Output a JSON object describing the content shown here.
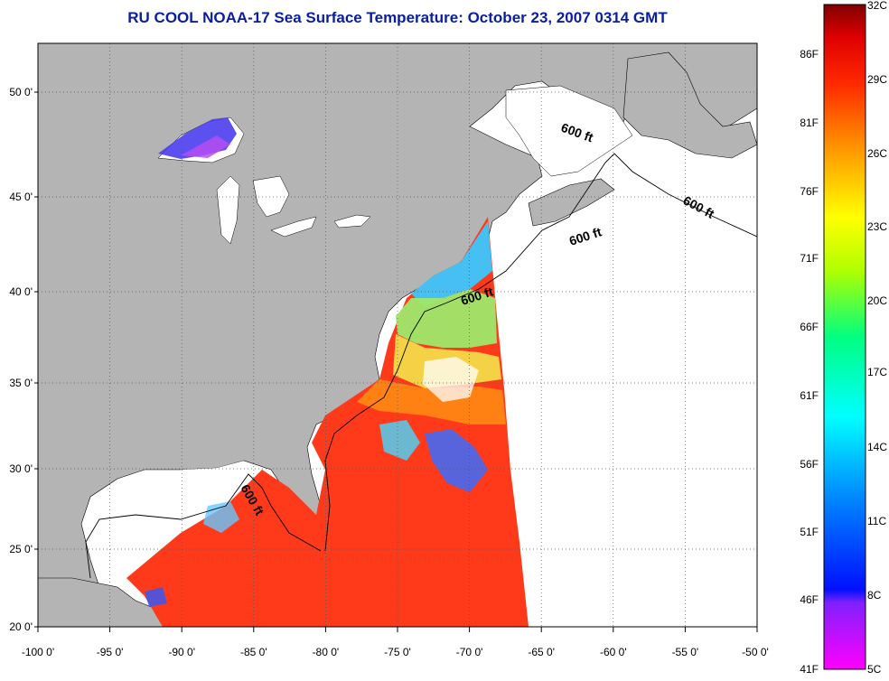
{
  "title": "RU COOL  NOAA-17  Sea Surface Temperature:  October 23, 2007 0314 GMT",
  "map": {
    "lon_labels": [
      "-100 0'",
      "-95 0'",
      "-90 0'",
      "-85 0'",
      "-80 0'",
      "-75 0'",
      "-70 0'",
      "-65 0'",
      "-60 0'",
      "-55 0'",
      "-50 0'"
    ],
    "lat_labels": [
      "50 0'",
      "45 0'",
      "40 0'",
      "35 0'",
      "30 0'",
      "25 0'",
      "20 0'"
    ],
    "lon_range": [
      -100,
      -50
    ],
    "lat_range": [
      20,
      52.5
    ],
    "grid": "dotted",
    "land_color": "#b4b4b4",
    "nodata_color": "#ffffff",
    "contour_labels": [
      "600 ft",
      "600 ft",
      "600 ft",
      "600 ft"
    ]
  },
  "colorbar": {
    "celsius_labels": [
      "32C",
      "29C",
      "26C",
      "23C",
      "20C",
      "17C",
      "14C",
      "11C",
      "8C",
      "5C"
    ],
    "fahrenheit_labels": [
      "86F",
      "81F",
      "76F",
      "71F",
      "66F",
      "61F",
      "56F",
      "51F",
      "46F",
      "41F"
    ],
    "range_c": [
      5,
      32
    ],
    "colors": [
      "#ff00ff",
      "#8020ff",
      "#0000ff",
      "#0060ff",
      "#00d0ff",
      "#00ff90",
      "#a0ff00",
      "#ffff00",
      "#ff9900",
      "#ff2000",
      "#ff0000",
      "#800000"
    ]
  }
}
